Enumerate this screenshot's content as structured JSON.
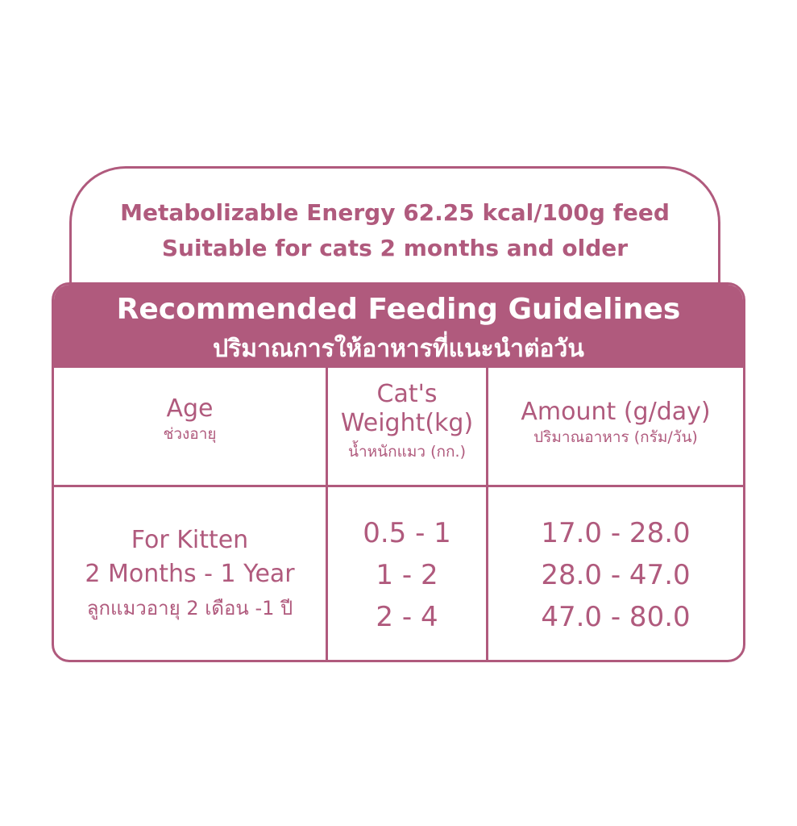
{
  "header": {
    "energy_line": "Metabolizable Energy  62.25 kcal/100g feed",
    "age_line": "Suitable for cats 2 months and older"
  },
  "banner": {
    "title_en": "Recommended Feeding Guidelines",
    "title_th": "ปริมาณการให้อาหารที่แนะนำต่อวัน"
  },
  "table": {
    "headers": {
      "age_en": "Age",
      "age_th": "ช่วงอายุ",
      "weight_en_1": "Cat's",
      "weight_en_2": "Weight(kg)",
      "weight_th": "น้ำหนักแมว (กก.)",
      "amount_en": "Amount (g/day)",
      "amount_th": "ปริมาณอาหาร (กรัม/วัน)"
    },
    "row": {
      "age_en_1": "For Kitten",
      "age_en_2": "2 Months - 1 Year",
      "age_th": "ลูกแมวอายุ 2 เดือน -1 ปี",
      "weights": [
        "0.5 - 1",
        "1 - 2",
        "2 - 4"
      ],
      "amounts": [
        "17.0 - 28.0",
        "28.0 - 47.0",
        "47.0 - 80.0"
      ]
    }
  },
  "colors": {
    "accent": "#b05a7d",
    "background": "#ffffff"
  }
}
